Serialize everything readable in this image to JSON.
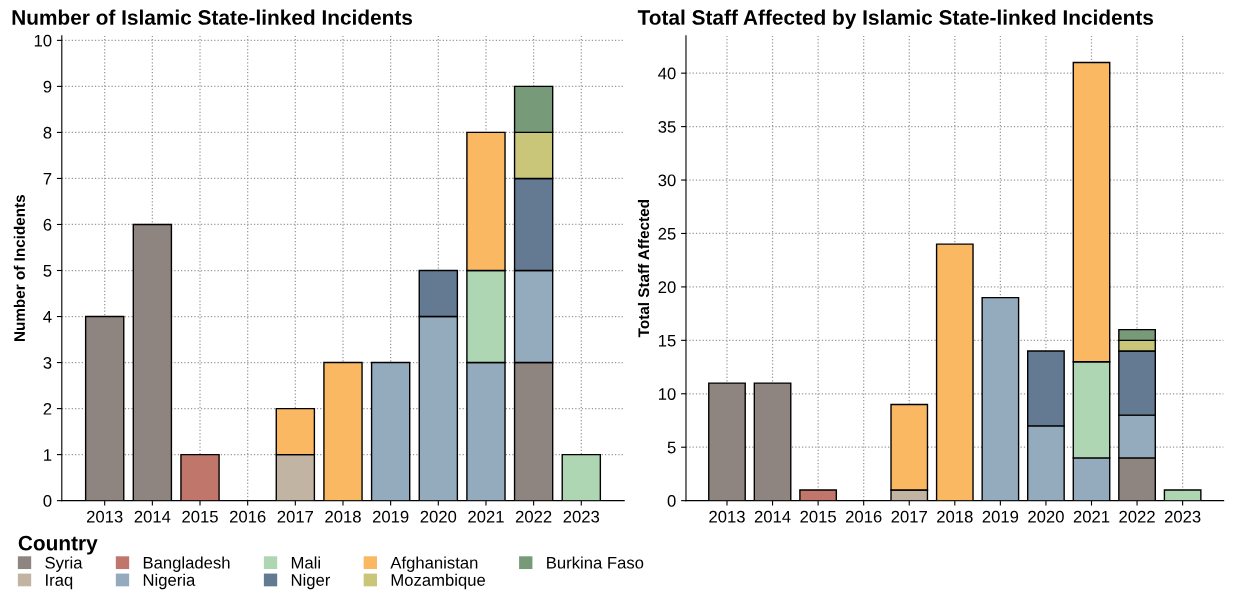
{
  "chart_data": [
    {
      "type": "bar",
      "stacked": true,
      "title": "Number of Islamic State-linked Incidents",
      "ylabel": "Number of Incidents",
      "legend_title": "Country",
      "legend": "bottom",
      "grid": true,
      "categories": [
        "2013",
        "2014",
        "2015",
        "2016",
        "2017",
        "2018",
        "2019",
        "2020",
        "2021",
        "2022",
        "2023"
      ],
      "ylim": [
        0,
        10.1
      ],
      "yticks": [
        0,
        1,
        2,
        3,
        4,
        5,
        6,
        7,
        8,
        9,
        10
      ],
      "series": [
        {
          "name": "Syria",
          "color": "#8f8580",
          "values": [
            4,
            6,
            null,
            null,
            null,
            null,
            null,
            null,
            null,
            3,
            null
          ]
        },
        {
          "name": "Iraq",
          "color": "#c2b4a3",
          "values": [
            null,
            null,
            null,
            null,
            1,
            null,
            null,
            null,
            null,
            null,
            null
          ]
        },
        {
          "name": "Bangladesh",
          "color": "#c0766a",
          "values": [
            null,
            null,
            1,
            null,
            null,
            null,
            null,
            null,
            null,
            null,
            null
          ]
        },
        {
          "name": "Nigeria",
          "color": "#94aabd",
          "values": [
            null,
            null,
            null,
            null,
            null,
            null,
            3,
            4,
            3,
            2,
            null
          ]
        },
        {
          "name": "Mali",
          "color": "#aed6b3",
          "values": [
            null,
            null,
            null,
            null,
            null,
            null,
            null,
            null,
            2,
            null,
            1
          ]
        },
        {
          "name": "Niger",
          "color": "#647a92",
          "values": [
            null,
            null,
            null,
            null,
            null,
            null,
            null,
            1,
            null,
            2,
            null
          ]
        },
        {
          "name": "Afghanistan",
          "color": "#fbb862",
          "values": [
            null,
            null,
            null,
            null,
            1,
            3,
            null,
            null,
            3,
            null,
            null
          ]
        },
        {
          "name": "Mozambique",
          "color": "#c9c67a",
          "values": [
            null,
            null,
            null,
            null,
            null,
            null,
            null,
            null,
            null,
            1,
            null
          ]
        },
        {
          "name": "Burkina Faso",
          "color": "#779a78",
          "values": [
            null,
            null,
            null,
            null,
            null,
            null,
            null,
            null,
            null,
            1,
            null
          ]
        }
      ]
    },
    {
      "type": "bar",
      "stacked": true,
      "title": "Total Staff Affected by Islamic State-linked Incidents",
      "ylabel": "Total Staff Affected",
      "grid": true,
      "categories": [
        "2013",
        "2014",
        "2015",
        "2016",
        "2017",
        "2018",
        "2019",
        "2020",
        "2021",
        "2022",
        "2023"
      ],
      "ylim": [
        0,
        43.5
      ],
      "yticks": [
        0,
        5,
        10,
        15,
        20,
        25,
        30,
        35,
        40
      ],
      "series": [
        {
          "color": "#8f8580",
          "values": [
            11,
            11,
            null,
            null,
            null,
            null,
            null,
            null,
            null,
            4,
            null
          ]
        },
        {
          "color": "#c2b4a3",
          "values": [
            null,
            null,
            null,
            null,
            1,
            null,
            null,
            null,
            null,
            null,
            null
          ]
        },
        {
          "color": "#c0766a",
          "values": [
            null,
            null,
            1,
            null,
            null,
            null,
            null,
            null,
            null,
            null,
            null
          ]
        },
        {
          "color": "#94aabd",
          "values": [
            null,
            null,
            null,
            null,
            null,
            null,
            19,
            7,
            4,
            4,
            null
          ]
        },
        {
          "color": "#aed6b3",
          "values": [
            null,
            null,
            null,
            null,
            null,
            null,
            null,
            null,
            9,
            null,
            1
          ]
        },
        {
          "color": "#647a92",
          "values": [
            null,
            null,
            null,
            null,
            null,
            null,
            null,
            7,
            null,
            6,
            null
          ]
        },
        {
          "color": "#fbb862",
          "values": [
            null,
            null,
            null,
            null,
            8,
            24,
            null,
            null,
            28,
            null,
            null
          ]
        },
        {
          "color": "#c9c67a",
          "values": [
            null,
            null,
            null,
            null,
            null,
            null,
            null,
            null,
            null,
            1,
            null
          ]
        },
        {
          "color": "#779a78",
          "values": [
            null,
            null,
            null,
            null,
            null,
            null,
            null,
            null,
            null,
            1,
            null
          ]
        }
      ]
    }
  ]
}
